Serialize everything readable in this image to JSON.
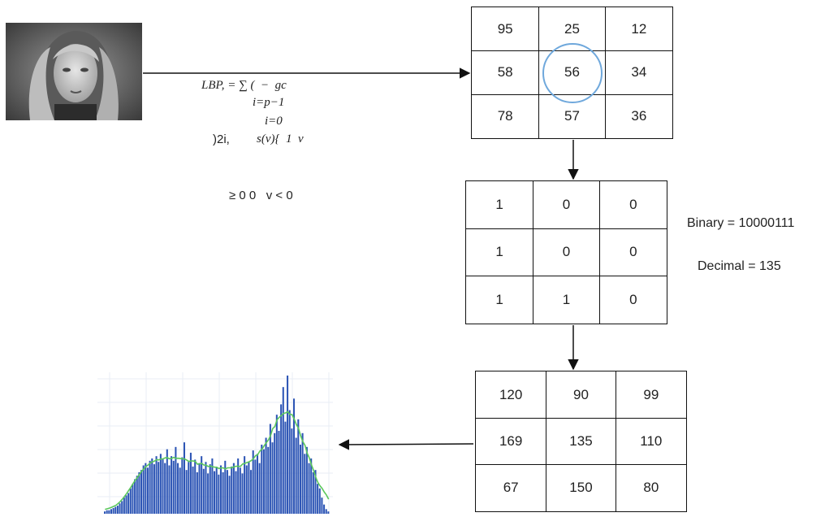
{
  "formula": {
    "line1": "LBP, = ∑ (  −  gc",
    "line2": "i=p−1",
    "line3": "i=0",
    "line4a": ")2i,",
    "line4b": "s(v){  1  v",
    "line5": "≥ 0 0   v < 0"
  },
  "neighborhood_grid": {
    "cells": [
      "95",
      "25",
      "12",
      "58",
      "56",
      "34",
      "78",
      "57",
      "36"
    ],
    "center_highlight_color": "#6fa8dc"
  },
  "binary_grid": {
    "cells": [
      "1",
      "0",
      "0",
      "1",
      "0",
      "0",
      "1",
      "1",
      "0"
    ]
  },
  "binary_label": "Binary = 10000111",
  "decimal_label": "Decimal = 135",
  "lbp_grid": {
    "cells": [
      "120",
      "90",
      "99",
      "169",
      "135",
      "110",
      "67",
      "150",
      "80"
    ]
  },
  "histogram": {
    "bar_color": "#2d55b5",
    "curve_color": "#5cc85c",
    "values": [
      2,
      3,
      3,
      4,
      5,
      6,
      7,
      9,
      11,
      14,
      16,
      18,
      22,
      26,
      30,
      33,
      36,
      38,
      42,
      44,
      40,
      46,
      48,
      43,
      50,
      45,
      52,
      48,
      44,
      56,
      42,
      50,
      46,
      58,
      44,
      40,
      49,
      62,
      38,
      45,
      53,
      41,
      47,
      36,
      44,
      50,
      39,
      45,
      35,
      43,
      48,
      37,
      40,
      34,
      42,
      36,
      46,
      38,
      33,
      41,
      44,
      37,
      48,
      40,
      35,
      50,
      42,
      45,
      38,
      55,
      47,
      52,
      44,
      60,
      56,
      66,
      58,
      78,
      62,
      70,
      86,
      72,
      95,
      110,
      80,
      120,
      90,
      74,
      100,
      66,
      82,
      60,
      70,
      52,
      58,
      44,
      48,
      36,
      38,
      26,
      22,
      14,
      8,
      4,
      2
    ]
  },
  "icons": {
    "photo": "portrait-photo-icon"
  }
}
